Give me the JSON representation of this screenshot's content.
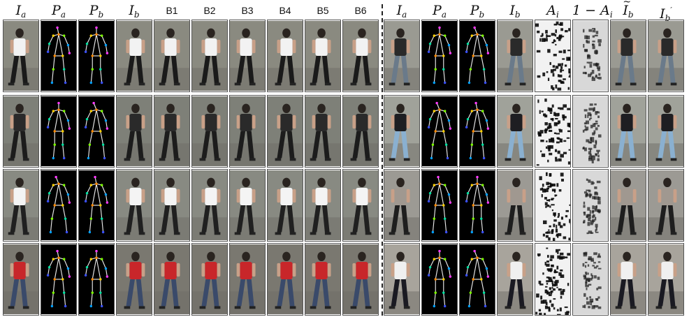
{
  "left_headers": [
    {
      "base": "I",
      "sub": "a",
      "style": "math"
    },
    {
      "base": "P",
      "sub": "a",
      "style": "math"
    },
    {
      "base": "P",
      "sub": "b",
      "style": "math"
    },
    {
      "base": "I",
      "sub": "b",
      "style": "math"
    },
    {
      "base": "B1",
      "style": "sans"
    },
    {
      "base": "B2",
      "style": "sans"
    },
    {
      "base": "B3",
      "style": "sans"
    },
    {
      "base": "B4",
      "style": "sans"
    },
    {
      "base": "B5",
      "style": "sans"
    },
    {
      "base": "B6",
      "style": "sans"
    }
  ],
  "right_headers": [
    {
      "base": "I",
      "sub": "a",
      "style": "math"
    },
    {
      "base": "P",
      "sub": "a",
      "style": "math"
    },
    {
      "base": "P",
      "sub": "b",
      "style": "math"
    },
    {
      "base": "I",
      "sub": "b",
      "style": "math"
    },
    {
      "base": "A",
      "sub": "i",
      "style": "math"
    },
    {
      "base": "1 − A",
      "sub": "i",
      "style": "math"
    },
    {
      "base": "I",
      "sub": "b",
      "style": "math",
      "tilde": true
    },
    {
      "base": "I",
      "sub": "b",
      "sup": "′",
      "style": "math"
    }
  ],
  "left_column_kinds": [
    "photo",
    "pose",
    "pose",
    "photo",
    "photo",
    "photo",
    "photo",
    "photo",
    "photo",
    "photo"
  ],
  "right_column_kinds": [
    "photo",
    "pose",
    "pose",
    "photo",
    "mask",
    "mask-inv",
    "photo",
    "photo"
  ],
  "rows": [
    {
      "left_shirt": "#f2f2f2",
      "left_pants": "#1a1a1a",
      "left_bg": "#8a8a80",
      "right_shirt": "#2a2a2a",
      "right_pants": "#6a7a8a",
      "right_bg": "#9a9a92"
    },
    {
      "left_shirt": "#2a2a2a",
      "left_pants": "#1c1c1c",
      "left_bg": "#7e8078",
      "right_shirt": "#1e1e22",
      "right_pants": "#8ab0d0",
      "right_bg": "#a0a29a"
    },
    {
      "left_shirt": "#f4f4f4",
      "left_pants": "#202020",
      "left_bg": "#888a82",
      "right_shirt": "#a09890",
      "right_pants": "#1e1e1e",
      "right_bg": "#9c9a94"
    },
    {
      "left_shirt": "#c8262a",
      "left_pants": "#3a4a6a",
      "left_bg": "#7a7870",
      "right_shirt": "#f0f0f0",
      "right_pants": "#1a1a22",
      "right_bg": "#a8a49c"
    }
  ]
}
